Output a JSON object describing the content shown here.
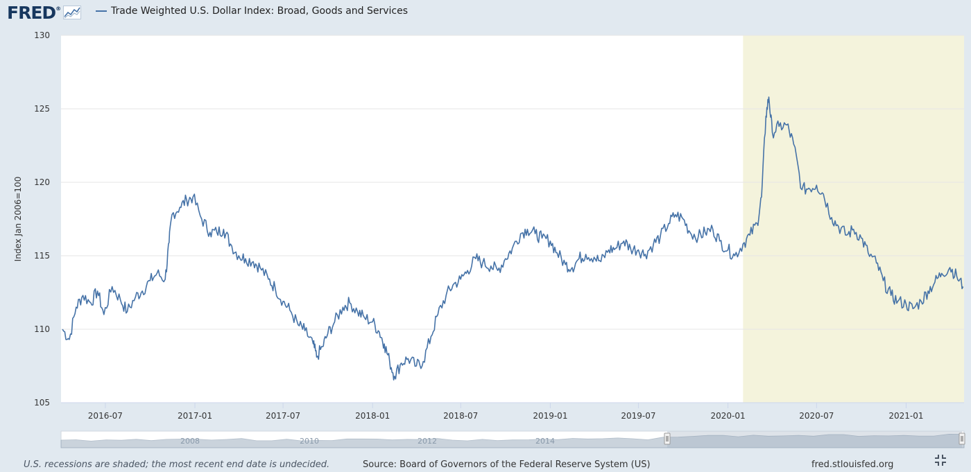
{
  "header": {
    "logo_text": "FRED",
    "logo_reg": "®",
    "logo_icon": "chart-line-icon"
  },
  "footer": {
    "recession_note": "U.S. recessions are shaded; the most recent end date is undecided.",
    "source": "Source: Board of Governors of the Federal Reserve System (US)",
    "site": "fred.stlouisfed.org",
    "fullscreen_icon": "fullscreen-icon"
  },
  "colors": {
    "series": "#4572a7",
    "recession_shade": "#f4f3dc",
    "background": "#e1e9f0",
    "navigator_fill": "#c2ccd7"
  },
  "chart_data": {
    "type": "line",
    "title": "",
    "legend": [
      "Trade Weighted U.S. Dollar Index: Broad, Goods and Services"
    ],
    "legend_placement": "top-left",
    "xlabel": "",
    "ylabel": "Index Jan 2006=100",
    "xlim": [
      "2016-04-01",
      "2021-04-30"
    ],
    "ylim": [
      105,
      130
    ],
    "y_ticks": [
      105,
      110,
      115,
      120,
      125,
      130
    ],
    "x_ticks": [
      "2016-07",
      "2017-01",
      "2017-07",
      "2018-01",
      "2018-07",
      "2019-01",
      "2019-07",
      "2020-01",
      "2020-07",
      "2021-01"
    ],
    "grid": "horizontal",
    "recession_shading": [
      {
        "start": "2020-02-01",
        "end": "2021-04-30"
      }
    ],
    "navigator_labels": [
      "2008",
      "2010",
      "2012",
      "2014"
    ],
    "series": [
      {
        "name": "Trade Weighted U.S. Dollar Index: Broad, Goods and Services",
        "x": [
          "2016-04-04",
          "2016-04-18",
          "2016-05-02",
          "2016-05-16",
          "2016-06-01",
          "2016-06-15",
          "2016-06-28",
          "2016-07-15",
          "2016-08-01",
          "2016-08-15",
          "2016-09-01",
          "2016-09-15",
          "2016-10-01",
          "2016-10-15",
          "2016-11-01",
          "2016-11-09",
          "2016-11-15",
          "2016-12-01",
          "2016-12-15",
          "2016-12-28",
          "2017-01-15",
          "2017-02-01",
          "2017-02-15",
          "2017-03-01",
          "2017-03-15",
          "2017-04-01",
          "2017-04-15",
          "2017-05-01",
          "2017-05-15",
          "2017-06-01",
          "2017-06-15",
          "2017-07-01",
          "2017-07-15",
          "2017-08-01",
          "2017-08-15",
          "2017-09-01",
          "2017-09-08",
          "2017-09-20",
          "2017-10-01",
          "2017-10-15",
          "2017-11-01",
          "2017-11-15",
          "2017-12-01",
          "2017-12-15",
          "2018-01-01",
          "2018-01-15",
          "2018-01-25",
          "2018-02-05",
          "2018-02-15",
          "2018-03-01",
          "2018-03-15",
          "2018-04-01",
          "2018-04-15",
          "2018-05-01",
          "2018-05-15",
          "2018-06-01",
          "2018-06-15",
          "2018-07-01",
          "2018-07-15",
          "2018-08-01",
          "2018-08-15",
          "2018-09-01",
          "2018-09-15",
          "2018-10-01",
          "2018-10-15",
          "2018-11-01",
          "2018-11-15",
          "2018-12-01",
          "2018-12-15",
          "2019-01-01",
          "2019-01-15",
          "2019-02-01",
          "2019-02-15",
          "2019-03-01",
          "2019-03-15",
          "2019-04-01",
          "2019-04-15",
          "2019-05-01",
          "2019-05-15",
          "2019-06-01",
          "2019-06-15",
          "2019-07-01",
          "2019-07-15",
          "2019-08-01",
          "2019-08-15",
          "2019-09-01",
          "2019-09-15",
          "2019-10-01",
          "2019-10-15",
          "2019-11-01",
          "2019-11-15",
          "2019-12-01",
          "2019-12-15",
          "2020-01-01",
          "2020-01-15",
          "2020-02-01",
          "2020-02-15",
          "2020-03-01",
          "2020-03-10",
          "2020-03-19",
          "2020-03-25",
          "2020-04-01",
          "2020-04-15",
          "2020-05-01",
          "2020-05-15",
          "2020-06-01",
          "2020-06-15",
          "2020-07-01",
          "2020-07-15",
          "2020-08-01",
          "2020-08-15",
          "2020-09-01",
          "2020-09-15",
          "2020-10-01",
          "2020-10-15",
          "2020-11-01",
          "2020-11-15",
          "2020-12-01",
          "2020-12-15",
          "2021-01-01",
          "2021-01-15",
          "2021-02-01",
          "2021-02-15",
          "2021-03-01",
          "2021-03-15",
          "2021-04-01",
          "2021-04-15",
          "2021-04-28"
        ],
        "values": [
          110.0,
          109.3,
          111.5,
          112.3,
          111.8,
          112.6,
          111.0,
          112.9,
          112.0,
          111.2,
          112.2,
          112.6,
          113.3,
          113.8,
          113.4,
          115.9,
          117.8,
          118.3,
          118.8,
          119.0,
          117.5,
          116.6,
          116.6,
          116.8,
          115.8,
          115.0,
          114.8,
          114.6,
          114.2,
          113.4,
          112.8,
          111.9,
          111.3,
          110.3,
          109.9,
          109.0,
          108.1,
          108.8,
          109.7,
          110.5,
          111.5,
          111.8,
          111.2,
          110.8,
          110.5,
          109.8,
          109.0,
          107.8,
          106.8,
          107.7,
          108.0,
          107.5,
          107.8,
          109.5,
          111.0,
          112.3,
          113.0,
          113.4,
          114.0,
          114.8,
          114.5,
          114.3,
          114.0,
          114.8,
          115.5,
          116.5,
          116.8,
          116.5,
          116.2,
          116.0,
          115.2,
          114.4,
          114.2,
          114.8,
          115.1,
          114.9,
          114.6,
          115.4,
          115.5,
          116.0,
          115.5,
          115.4,
          115.1,
          115.8,
          116.3,
          117.2,
          117.8,
          117.5,
          116.6,
          116.3,
          116.6,
          116.8,
          116.0,
          115.4,
          115.0,
          115.8,
          116.4,
          117.2,
          119.0,
          124.5,
          125.8,
          123.4,
          123.8,
          123.9,
          122.6,
          119.5,
          119.6,
          119.8,
          119.2,
          117.6,
          117.0,
          116.4,
          116.8,
          116.2,
          115.2,
          114.5,
          113.3,
          112.3,
          111.9,
          111.7,
          111.4,
          111.9,
          112.6,
          113.2,
          113.8,
          114.2,
          113.6,
          112.9
        ]
      }
    ]
  }
}
